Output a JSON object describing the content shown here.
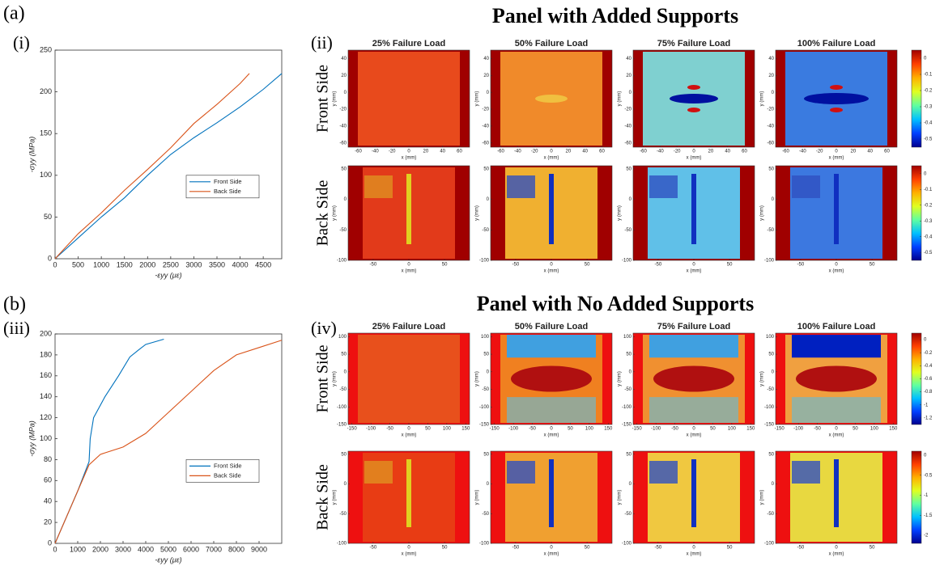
{
  "figure": {
    "parts": [
      {
        "label": "(a)",
        "heading": "Panel with Added Supports",
        "plot_label": "(i)",
        "maps_label": "(ii)",
        "columns": [
          "25% Failure Load",
          "50% Failure Load",
          "75% Failure Load",
          "100% Failure Load"
        ],
        "rows": [
          {
            "side": "Front Side",
            "xlabel": "x (mm)",
            "ylabel": "y (mm)",
            "xlim": [
              -72,
              72
            ],
            "ylim": [
              -65,
              50
            ],
            "xticks": [
              -60,
              -40,
              -20,
              0,
              20,
              40,
              60
            ],
            "yticks": [
              40,
              20,
              0,
              -20,
              -40,
              -60
            ],
            "clim": [
              -0.55,
              0.05
            ],
            "cticks": [
              0,
              -0.1,
              -0.2,
              -0.3,
              -0.4,
              -0.5
            ]
          },
          {
            "side": "Back Side",
            "xlabel": "x (mm)",
            "ylabel": "y (mm)",
            "xlim": [
              -85,
              85
            ],
            "ylim": [
              -100,
              55
            ],
            "xticks": [
              -50,
              0,
              50
            ],
            "yticks": [
              50,
              0,
              -50,
              -100
            ],
            "clim": [
              -0.55,
              0.05
            ],
            "cticks": [
              0,
              -0.1,
              -0.2,
              -0.3,
              -0.4,
              -0.5
            ]
          }
        ]
      },
      {
        "label": "(b)",
        "heading": "Panel with No Added Supports",
        "plot_label": "(iii)",
        "maps_label": "(iv)",
        "columns": [
          "25% Failure Load",
          "50% Failure Load",
          "75% Failure Load",
          "100% Failure Load"
        ],
        "rows": [
          {
            "side": "Front Side",
            "xlabel": "x (mm)",
            "ylabel": "y (mm)",
            "xlim": [
              -160,
              160
            ],
            "ylim": [
              -150,
              110
            ],
            "xticks": [
              -150,
              -100,
              -50,
              0,
              50,
              100,
              150
            ],
            "yticks": [
              100,
              50,
              0,
              -50,
              -100,
              -150
            ],
            "clim": [
              -1.3,
              0.1
            ],
            "cticks": [
              0,
              -0.2,
              -0.4,
              -0.6,
              -0.8,
              -1,
              -1.2
            ]
          },
          {
            "side": "Back Side",
            "xlabel": "x (mm)",
            "ylabel": "y (mm)",
            "xlim": [
              -85,
              85
            ],
            "ylim": [
              -100,
              55
            ],
            "xticks": [
              -50,
              0,
              50
            ],
            "yticks": [
              50,
              0,
              -50,
              -100
            ],
            "clim": [
              -2.2,
              0.1
            ],
            "cticks": [
              0,
              -0.5,
              -1,
              -1.5,
              -2
            ]
          }
        ]
      }
    ]
  },
  "chart_data": [
    {
      "type": "line",
      "xlabel": "-εyy (με)",
      "ylabel": "-σyy (MPa)",
      "xlim": [
        0,
        4900
      ],
      "ylim": [
        0,
        250
      ],
      "xticks": [
        0,
        500,
        1000,
        1500,
        2000,
        2500,
        3000,
        3500,
        4000,
        4500
      ],
      "yticks": [
        0,
        50,
        100,
        150,
        200,
        250
      ],
      "legend": "lower right",
      "series": [
        {
          "name": "Front Side",
          "color": "#0072bd",
          "x": [
            0,
            500,
            1000,
            1500,
            2000,
            2500,
            3000,
            3500,
            4000,
            4500,
            4900
          ],
          "values": [
            0,
            25,
            50,
            73,
            100,
            125,
            145,
            163,
            182,
            203,
            222
          ]
        },
        {
          "name": "Back Side",
          "color": "#d95319",
          "x": [
            0,
            500,
            1000,
            1500,
            2000,
            2500,
            3000,
            3500,
            4000,
            4200
          ],
          "values": [
            0,
            30,
            55,
            82,
            107,
            133,
            162,
            185,
            210,
            222
          ]
        }
      ]
    },
    {
      "type": "line",
      "xlabel": "-εyy (με)",
      "ylabel": "-σyy (MPa)",
      "xlim": [
        0,
        10000
      ],
      "ylim": [
        0,
        200
      ],
      "xticks": [
        0,
        1000,
        2000,
        3000,
        4000,
        5000,
        6000,
        7000,
        8000,
        9000
      ],
      "yticks": [
        0,
        20,
        40,
        60,
        80,
        100,
        120,
        140,
        160,
        180,
        200
      ],
      "legend": "lower right",
      "series": [
        {
          "name": "Front Side",
          "color": "#0072bd",
          "x": [
            0,
            500,
            1000,
            1500,
            1550,
            1700,
            2200,
            2800,
            3300,
            3700,
            4000,
            4800
          ],
          "values": [
            0,
            25,
            50,
            78,
            100,
            120,
            140,
            160,
            178,
            185,
            190,
            195
          ]
        },
        {
          "name": "Back Side",
          "color": "#d95319",
          "x": [
            0,
            500,
            1000,
            1500,
            2000,
            3000,
            4000,
            5000,
            6000,
            7000,
            8000,
            9000,
            10000
          ],
          "values": [
            0,
            25,
            50,
            75,
            85,
            92,
            105,
            125,
            145,
            165,
            180,
            187,
            194
          ]
        }
      ]
    }
  ]
}
